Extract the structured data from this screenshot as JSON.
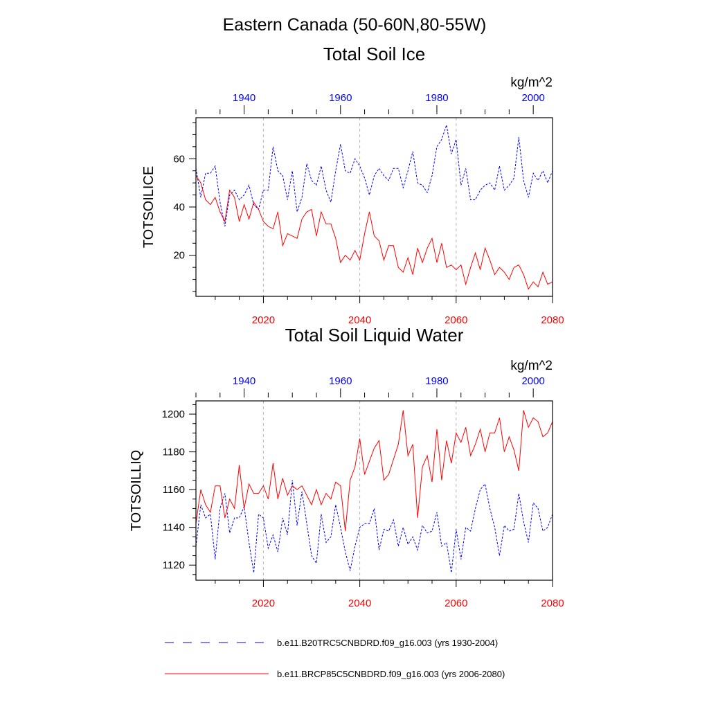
{
  "figure": {
    "title_line1": "Eastern Canada (50-60N,80-55W)"
  },
  "colors": {
    "historical": "#0000ff",
    "future": "#ff0000",
    "grid": "#b4b4b4",
    "axis": "#000000"
  },
  "legend": {
    "entries": [
      "b.e11.B20TRC5CNBDRD.f09_g16.003 (yrs 1930-2004)",
      "b.e11.BRCP85C5CNBDRD.f09_g16.003 (yrs 2006-2080)"
    ]
  },
  "chart_data": [
    {
      "type": "line",
      "title": "Total Soil Ice",
      "ylabel": "TOTSOILICE",
      "units": "kg/m^2",
      "grid": "vertical dashed at bottom-axis major ticks",
      "ylim": [
        3,
        77
      ],
      "yticks": [
        20,
        40,
        60
      ],
      "x_bottom": {
        "lim": [
          2006,
          2080
        ],
        "ticks": [
          2020,
          2040,
          2060,
          2080
        ],
        "color": "#ff0000"
      },
      "x_top": {
        "lim": [
          1930,
          2004
        ],
        "ticks": [
          1940,
          1960,
          1980,
          2000
        ],
        "color": "#0000ff"
      },
      "series": [
        {
          "name": "b.e11.B20TRC5CNBDRD.f09_g16.003 (yrs 1930-2004)",
          "axis": "top",
          "style": "dashed",
          "x_start": 1930,
          "values": [
            56,
            44,
            54,
            54,
            57,
            42,
            32,
            45,
            47,
            43,
            45,
            49,
            41,
            39,
            47,
            47,
            65,
            55,
            53,
            43,
            55,
            38,
            44,
            58,
            51,
            49,
            57,
            47,
            42,
            55,
            66,
            55,
            54,
            60,
            57,
            52,
            45,
            53,
            56,
            53,
            51,
            56,
            56,
            48,
            55,
            63,
            50,
            49,
            46,
            53,
            65,
            68,
            74,
            62,
            68,
            49,
            56,
            43,
            43,
            47,
            49,
            50,
            47,
            57,
            47,
            49,
            52,
            69,
            51,
            44,
            54,
            51,
            55,
            50,
            55
          ]
        },
        {
          "name": "b.e11.BRCP85C5CNBDRD.f09_g16.003 (yrs 2006-2080)",
          "axis": "bottom",
          "style": "solid",
          "x_start": 2006,
          "values": [
            53,
            50,
            43,
            41,
            44,
            38,
            34,
            47,
            44,
            34,
            41,
            35,
            42,
            39,
            34,
            32,
            31,
            38,
            24,
            29,
            28,
            27,
            35,
            38,
            39,
            28,
            38,
            33,
            33,
            27,
            17,
            20,
            18,
            22,
            18,
            29,
            38,
            28,
            26,
            18,
            24,
            24,
            15,
            13,
            19,
            12,
            23,
            17,
            23,
            27,
            17,
            25,
            15,
            16,
            14,
            16,
            8,
            15,
            21,
            14,
            23,
            18,
            12,
            15,
            13,
            10,
            15,
            16,
            12,
            6,
            9,
            7,
            13,
            8,
            9
          ]
        }
      ]
    },
    {
      "type": "line",
      "title": "Total Soil Liquid Water",
      "ylabel": "TOTSOILLIQ",
      "units": "kg/m^2",
      "grid": "vertical dashed at bottom-axis major ticks",
      "ylim": [
        1112,
        1207
      ],
      "yticks": [
        1120,
        1140,
        1160,
        1180,
        1200
      ],
      "x_bottom": {
        "lim": [
          2006,
          2080
        ],
        "ticks": [
          2020,
          2040,
          2060,
          2080
        ],
        "color": "#ff0000"
      },
      "x_top": {
        "lim": [
          1930,
          2004
        ],
        "ticks": [
          1940,
          1960,
          1980,
          2000
        ],
        "color": "#0000ff"
      },
      "series": [
        {
          "name": "b.e11.B20TRC5CNBDRD.f09_g16.003 (yrs 1930-2004)",
          "axis": "top",
          "style": "dashed",
          "x_start": 1930,
          "values": [
            1130,
            1152,
            1145,
            1147,
            1123,
            1150,
            1158,
            1137,
            1145,
            1145,
            1151,
            1132,
            1116,
            1147,
            1145,
            1129,
            1136,
            1127,
            1145,
            1136,
            1165,
            1141,
            1159,
            1142,
            1125,
            1121,
            1147,
            1132,
            1135,
            1152,
            1140,
            1127,
            1117,
            1130,
            1140,
            1142,
            1142,
            1150,
            1128,
            1139,
            1138,
            1144,
            1130,
            1140,
            1131,
            1135,
            1128,
            1141,
            1137,
            1138,
            1148,
            1130,
            1132,
            1116,
            1139,
            1123,
            1140,
            1138,
            1150,
            1160,
            1163,
            1150,
            1140,
            1125,
            1141,
            1138,
            1139,
            1158,
            1143,
            1132,
            1153,
            1150,
            1138,
            1140,
            1147
          ]
        },
        {
          "name": "b.e11.BRCP85C5CNBDRD.f09_g16.003 (yrs 2006-2080)",
          "axis": "bottom",
          "style": "solid",
          "x_start": 2006,
          "values": [
            1142,
            1160,
            1152,
            1148,
            1162,
            1162,
            1145,
            1155,
            1150,
            1173,
            1150,
            1163,
            1158,
            1158,
            1162,
            1155,
            1174,
            1155,
            1166,
            1157,
            1162,
            1160,
            1162,
            1157,
            1152,
            1160,
            1152,
            1158,
            1155,
            1164,
            1162,
            1138,
            1165,
            1172,
            1187,
            1168,
            1175,
            1182,
            1186,
            1165,
            1168,
            1176,
            1184,
            1202,
            1178,
            1184,
            1145,
            1172,
            1178,
            1164,
            1192,
            1165,
            1186,
            1174,
            1190,
            1185,
            1193,
            1178,
            1184,
            1192,
            1180,
            1190,
            1190,
            1198,
            1180,
            1188,
            1181,
            1170,
            1202,
            1193,
            1198,
            1196,
            1188,
            1190,
            1196
          ]
        }
      ]
    }
  ]
}
